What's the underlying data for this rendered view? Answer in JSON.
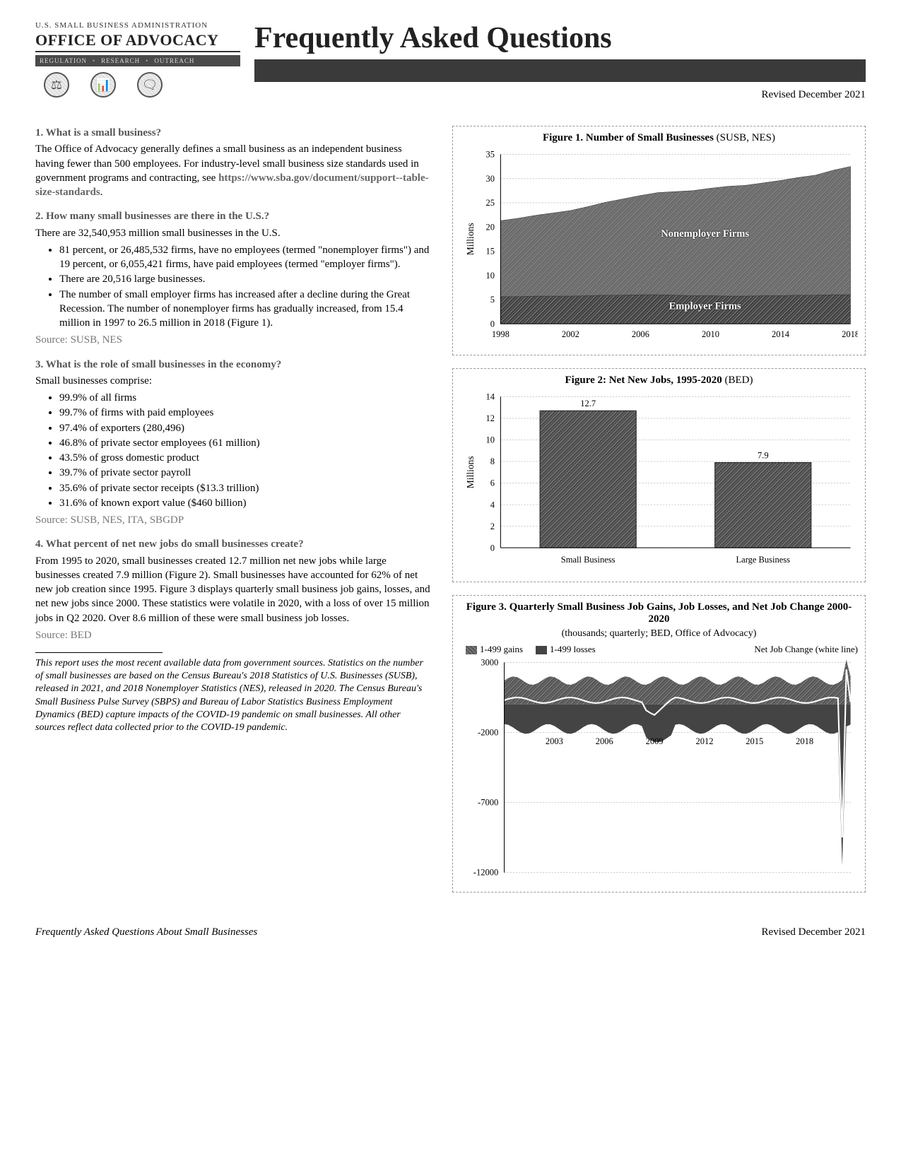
{
  "header": {
    "agency": "U.S. SMALL BUSINESS ADMINISTRATION",
    "office": "OFFICE OF ADVOCACY",
    "pillars": [
      "REGULATION",
      "RESEARCH",
      "OUTREACH"
    ],
    "main_title": "Frequently Asked Questions",
    "revised": "Revised December 2021"
  },
  "q1": {
    "heading": "1. What is a small business?",
    "body": "The Office of Advocacy generally defines a small business as an independent business having fewer than 500 employees. For industry-level small business size standards used in government programs and contracting, see ",
    "link": "https://www.sba.gov/document/support--table-size-standards",
    "link_suffix": "."
  },
  "q2": {
    "heading": "2. How many small businesses are there in the U.S.?",
    "body": "There are 32,540,953 million small businesses in the U.S.",
    "bullets": [
      "81 percent, or 26,485,532 firms, have no employees (termed \"nonemployer firms\") and 19 percent, or 6,055,421 firms, have paid employees (termed \"employer firms\").",
      "There are 20,516 large businesses.",
      "The number of small employer firms has increased after a decline during the Great Recession. The number of nonemployer firms has gradually increased, from 15.4 million in 1997 to 26.5 million in 2018 (Figure 1)."
    ],
    "source": "Source: SUSB, NES"
  },
  "q3": {
    "heading": "3. What is the role of small businesses in the economy?",
    "body": "Small businesses comprise:",
    "bullets": [
      "99.9% of all firms",
      "99.7% of firms with paid employees",
      "97.4% of exporters (280,496)",
      "46.8% of private sector employees (61 million)",
      "43.5% of gross domestic product",
      "39.7% of private sector payroll",
      "35.6% of private sector receipts ($13.3 trillion)",
      "31.6% of known export value ($460 billion)"
    ],
    "source": "Source: SUSB, NES, ITA, SBGDP"
  },
  "q4": {
    "heading": "4. What percent of net new jobs do small businesses create?",
    "body": "From 1995 to 2020, small businesses created 12.7 million net new jobs while large businesses created 7.9 million (Figure 2). Small businesses have accounted for 62% of net new job creation since 1995. Figure 3 displays quarterly small business job gains, losses, and net new jobs since 2000. These statistics were volatile in 2020, with a loss of over 15 million jobs in Q2 2020. Over 8.6 million of these were small business job losses.",
    "source": "Source: BED"
  },
  "footnote": "This report uses the most recent available data from government sources. Statistics on the number of small businesses are based on the Census Bureau's 2018 Statistics of U.S. Businesses (SUSB), released in 2021, and 2018 Nonemployer Statistics (NES), released in 2020. The Census Bureau's Small Business Pulse Survey (SBPS) and Bureau of Labor Statistics Business Employment Dynamics (BED) capture impacts of the COVID-19 pandemic on small businesses. All other sources reflect data collected prior to the COVID-19 pandemic.",
  "footer": {
    "left": "Frequently Asked Questions About Small Businesses",
    "right": "Revised December 2021"
  },
  "fig1": {
    "title": "Figure 1. Number of Small Businesses",
    "title_suffix": " (SUSB, NES)",
    "type": "area",
    "ylabel": "Millions",
    "ylim": [
      0,
      35
    ],
    "ytick_step": 5,
    "xticks": [
      1998,
      2002,
      2006,
      2010,
      2014,
      2018
    ],
    "years": [
      1998,
      1999,
      2000,
      2001,
      2002,
      2003,
      2004,
      2005,
      2006,
      2007,
      2008,
      2009,
      2010,
      2011,
      2012,
      2013,
      2014,
      2015,
      2016,
      2017,
      2018
    ],
    "employer": [
      5.6,
      5.6,
      5.7,
      5.7,
      5.7,
      5.8,
      5.9,
      5.9,
      6.0,
      6.0,
      5.9,
      5.8,
      5.8,
      5.7,
      5.7,
      5.8,
      5.8,
      5.9,
      5.9,
      6.0,
      6.0
    ],
    "nonemployer": [
      15.7,
      16.2,
      16.7,
      17.2,
      17.7,
      18.4,
      19.2,
      19.9,
      20.5,
      21.1,
      21.4,
      21.7,
      22.2,
      22.7,
      22.9,
      23.3,
      23.8,
      24.3,
      24.8,
      25.7,
      26.5
    ],
    "colors": {
      "employer": "#3f3f3f",
      "nonemployer": "#6a6a6a",
      "grid": "#cccccc",
      "background": "#ffffff"
    },
    "series_labels": {
      "employer": "Employer Firms",
      "nonemployer": "Nonemployer Firms"
    },
    "hatch": "crosshatch",
    "label_fontsize": 14
  },
  "fig2": {
    "title": "Figure 2: Net New Jobs, 1995-2020",
    "title_suffix": " (BED)",
    "type": "bar",
    "ylabel": "Millions",
    "ylim": [
      0,
      14
    ],
    "yticks": [
      0,
      2,
      4,
      6,
      8,
      10,
      12,
      14
    ],
    "categories": [
      "Small Business",
      "Large Business"
    ],
    "values": [
      12.7,
      7.9
    ],
    "value_labels": [
      "12.7",
      "7.9"
    ],
    "bar_color": "#4a4a4a",
    "grid_color": "#cccccc",
    "bar_width": 0.55,
    "hatch": "crosshatch",
    "background_color": "#ffffff"
  },
  "fig3": {
    "title": "Figure 3. Quarterly Small Business Job Gains, Job Losses, and Net Job Change 2000-2020",
    "subtitle": "(thousands; quarterly; BED, Office of Advocacy)",
    "type": "area",
    "legend": [
      "1-499 gains",
      "1-499 losses",
      "Net Job Change (white line)"
    ],
    "ylim": [
      -12000,
      3000
    ],
    "yticks": [
      -12000,
      -7000,
      -2000,
      3000
    ],
    "xticks": [
      2003,
      2006,
      2009,
      2012,
      2015,
      2018
    ],
    "colors": {
      "gains": "#555555",
      "losses": "#444444",
      "net_line": "#ffffff",
      "grid": "#cccccc"
    },
    "gains_band": [
      1400,
      2000
    ],
    "losses_band": [
      -2100,
      -1400
    ],
    "net_line_base": 300,
    "dip_2009": -900,
    "spike_2020_loss": -11500,
    "spike_2020_gain": 3200
  }
}
